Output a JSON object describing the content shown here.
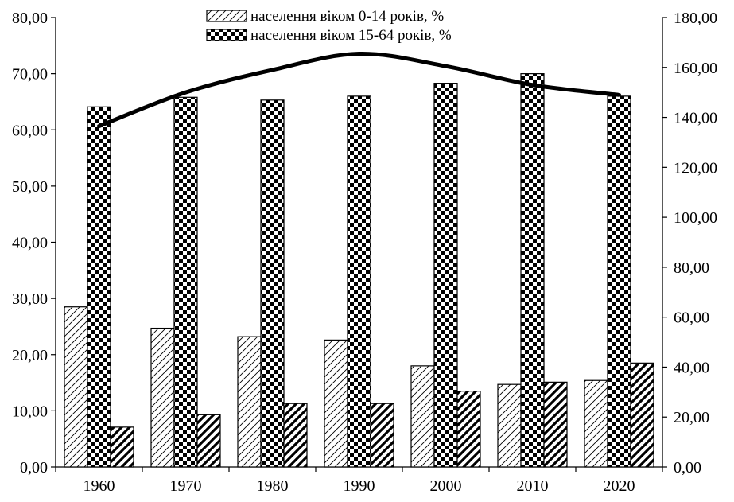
{
  "chart_data": {
    "type": "bar",
    "categories": [
      "1960",
      "1970",
      "1980",
      "1990",
      "2000",
      "2010",
      "2020"
    ],
    "series": [
      {
        "name": "населення віком 0-14 років, %",
        "axis": "left",
        "type": "bar",
        "pattern": "diagonal-hatch-light",
        "values": [
          28.5,
          24.7,
          23.2,
          22.6,
          18.0,
          14.7,
          15.4
        ]
      },
      {
        "name": "населення віком 15-64 років, %",
        "axis": "left",
        "type": "bar",
        "pattern": "checkerboard",
        "values": [
          64.1,
          65.8,
          65.3,
          66.0,
          68.3,
          70.0,
          66.0
        ]
      },
      {
        "name": "",
        "axis": "left",
        "type": "bar",
        "pattern": "diagonal-hatch-bold",
        "values": [
          7.1,
          9.3,
          11.3,
          11.3,
          13.5,
          15.1,
          18.5
        ]
      },
      {
        "name": "",
        "axis": "right",
        "type": "line",
        "color": "#000000",
        "values": [
          136.5,
          150.0,
          159.0,
          165.5,
          160.5,
          153.0,
          149.0
        ]
      }
    ],
    "y_left": {
      "ylim": [
        0,
        80
      ],
      "ticks": [
        "0,00",
        "10,00",
        "20,00",
        "30,00",
        "40,00",
        "50,00",
        "60,00",
        "70,00",
        "80,00"
      ]
    },
    "y_right": {
      "ylim": [
        0,
        180
      ],
      "ticks": [
        "0,00",
        "20,00",
        "40,00",
        "60,00",
        "80,00",
        "100,00",
        "120,00",
        "140,00",
        "160,00",
        "180,00"
      ]
    },
    "grid": false,
    "legend_position": "top-center"
  }
}
